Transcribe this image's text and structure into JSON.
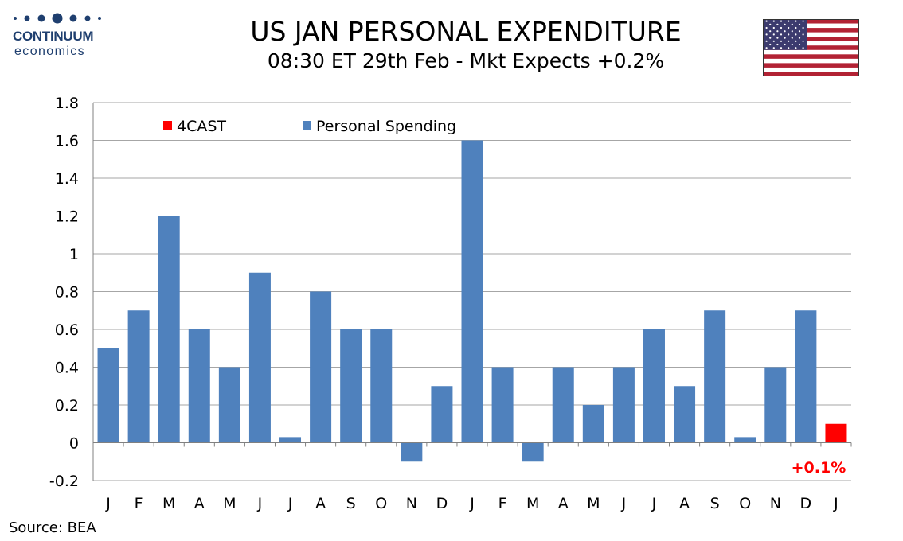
{
  "brand": {
    "name": "CONTINUUM",
    "sub": "economics",
    "logo_color": "#1f3f6f"
  },
  "header": {
    "title": "US JAN PERSONAL EXPENDITURE",
    "subtitle": "08:30 ET 29th Feb - Mkt Expects +0.2%",
    "flag_icon": "us-flag-icon"
  },
  "footer": {
    "source": "Source: BEA"
  },
  "chart_data": {
    "type": "bar",
    "categories": [
      "J",
      "F",
      "M",
      "A",
      "M",
      "J",
      "J",
      "A",
      "S",
      "O",
      "N",
      "D",
      "J",
      "F",
      "M",
      "A",
      "M",
      "J",
      "J",
      "A",
      "S",
      "O",
      "N",
      "D",
      "J"
    ],
    "series": [
      {
        "name": "Personal Spending",
        "color": "#4f81bd",
        "values": [
          0.5,
          0.7,
          1.2,
          0.6,
          0.4,
          0.9,
          0.03,
          0.8,
          0.6,
          0.6,
          -0.1,
          0.3,
          1.6,
          0.4,
          -0.1,
          0.4,
          0.2,
          0.4,
          0.6,
          0.3,
          0.7,
          0.03,
          0.4,
          0.7,
          null
        ]
      },
      {
        "name": "4CAST",
        "color": "#ff0000",
        "values": [
          null,
          null,
          null,
          null,
          null,
          null,
          null,
          null,
          null,
          null,
          null,
          null,
          null,
          null,
          null,
          null,
          null,
          null,
          null,
          null,
          null,
          null,
          null,
          null,
          0.1
        ]
      }
    ],
    "ylim": [
      -0.2,
      1.8
    ],
    "yticks": [
      "-0.2",
      "0",
      "0.2",
      "0.4",
      "0.6",
      "0.8",
      "1",
      "1.2",
      "1.4",
      "1.6",
      "1.8"
    ],
    "grid": true,
    "legend": "top-left",
    "annotations": [
      {
        "text": "+0.1%",
        "category_index": 24,
        "color": "#ff0000"
      }
    ]
  }
}
